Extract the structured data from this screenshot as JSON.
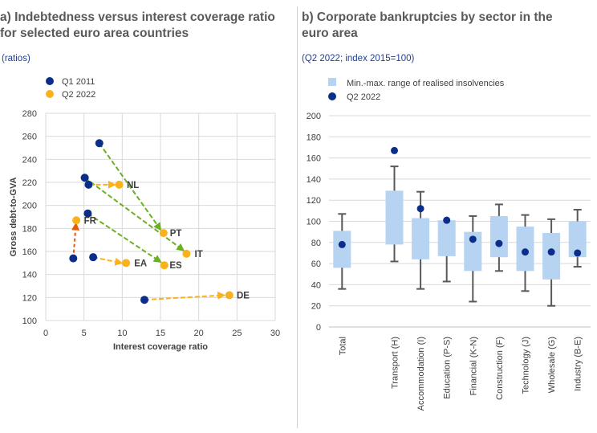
{
  "panel_a": {
    "title_line1": "a) Indebtedness versus interest coverage ratio",
    "title_line2": "for selected euro area countries",
    "subtitle": "(ratios)"
  },
  "panel_b": {
    "title_line1": "b) Corporate bankruptcies by sector in the",
    "title_line2": "euro area",
    "subtitle": "(Q2 2022; index 2015=100)"
  },
  "colors": {
    "q1_2011": "#0b2e8a",
    "q2_2022": "#f9b21b",
    "arrow_improve": "#6ab023",
    "arrow_worsen": "#f9b21b",
    "arrow_fr": "#e8590c",
    "range_bar": "#b7d3f2",
    "whisker": "#595959",
    "grid": "#d9d9d9"
  },
  "chart_data": [
    {
      "type": "scatter",
      "title": "",
      "xlabel": "Interest coverage ratio",
      "ylabel": "Gross debt-to-GVA",
      "xlim": [
        0,
        30
      ],
      "ylim": [
        100,
        280
      ],
      "xticks": [
        0,
        5,
        10,
        15,
        20,
        25,
        30
      ],
      "yticks": [
        100,
        120,
        140,
        160,
        180,
        200,
        220,
        240,
        260,
        280
      ],
      "grid": true,
      "legend": [
        "Q1 2011",
        "Q2 2022"
      ],
      "legend_position": "top-left",
      "series": [
        {
          "name": "Q1 2011",
          "color": "#0b2e8a",
          "points": [
            {
              "label": "NL",
              "x": 7.0,
              "y": 254
            },
            {
              "label": "PT",
              "x": 5.1,
              "y": 224
            },
            {
              "label": "IT",
              "x": 5.6,
              "y": 218
            },
            {
              "label": "ES",
              "x": 5.5,
              "y": 193
            },
            {
              "label": "FR",
              "x": 3.6,
              "y": 154
            },
            {
              "label": "EA",
              "x": 6.2,
              "y": 155
            },
            {
              "label": "DE",
              "x": 12.9,
              "y": 118
            }
          ]
        },
        {
          "name": "Q2 2022",
          "color": "#f9b21b",
          "points": [
            {
              "label": "NL",
              "x": 9.6,
              "y": 218
            },
            {
              "label": "PT",
              "x": 15.4,
              "y": 176
            },
            {
              "label": "IT",
              "x": 18.4,
              "y": 158
            },
            {
              "label": "ES",
              "x": 15.5,
              "y": 148
            },
            {
              "label": "FR",
              "x": 4.0,
              "y": 187
            },
            {
              "label": "EA",
              "x": 10.5,
              "y": 150
            },
            {
              "label": "DE",
              "x": 24.0,
              "y": 122
            }
          ]
        }
      ],
      "arrows": [
        {
          "from": [
            7.0,
            254
          ],
          "to": [
            15.0,
            179
          ],
          "style": "improve"
        },
        {
          "from": [
            5.1,
            224
          ],
          "to": [
            18.0,
            161
          ],
          "style": "improve"
        },
        {
          "from": [
            5.5,
            193
          ],
          "to": [
            15.0,
            151
          ],
          "style": "improve"
        },
        {
          "from": [
            5.6,
            218
          ],
          "to": [
            9.0,
            218
          ],
          "style": "worsen"
        },
        {
          "from": [
            6.2,
            155
          ],
          "to": [
            9.9,
            150
          ],
          "style": "worsen"
        },
        {
          "from": [
            12.9,
            118
          ],
          "to": [
            23.3,
            122
          ],
          "style": "worsen"
        },
        {
          "from": [
            3.6,
            154
          ],
          "to": [
            3.95,
            184
          ],
          "style": "fr"
        }
      ],
      "point_labels": [
        {
          "text": "NL",
          "x": 11.4,
          "y": 218
        },
        {
          "text": "FR",
          "x": 5.8,
          "y": 187
        },
        {
          "text": "PT",
          "x": 17.0,
          "y": 176
        },
        {
          "text": "IT",
          "x": 20.0,
          "y": 158
        },
        {
          "text": "ES",
          "x": 17.0,
          "y": 148
        },
        {
          "text": "EA",
          "x": 12.4,
          "y": 150
        },
        {
          "text": "DE",
          "x": 25.8,
          "y": 122
        }
      ]
    },
    {
      "type": "bar",
      "title": "",
      "xlabel": "",
      "ylabel": "",
      "ylim": [
        0,
        200
      ],
      "yticks": [
        0,
        20,
        40,
        60,
        80,
        100,
        120,
        140,
        160,
        180,
        200
      ],
      "grid": true,
      "legend": [
        "Min.-max. range of realised insolvencies",
        "Q2 2022"
      ],
      "legend_position": "top-left",
      "categories": [
        "Total",
        "",
        "Transport (H)",
        "Accommodation (I)",
        "Education (P-S)",
        "Financial (K-N)",
        "Construction (F)",
        "Technology (J)",
        "Wholesale (G)",
        "Industry (B-E)"
      ],
      "series": [
        {
          "name": "Min.-max. range of realised insolvencies",
          "box_low": [
            56,
            null,
            78,
            64,
            67,
            53,
            66,
            53,
            45,
            66
          ],
          "box_high": [
            91,
            null,
            129,
            103,
            101,
            90,
            105,
            95,
            89,
            100
          ],
          "whisker_low": [
            36,
            null,
            62,
            36,
            43,
            24,
            53,
            34,
            20,
            57
          ],
          "whisker_high": [
            107,
            null,
            152,
            128,
            100,
            105,
            116,
            106,
            102,
            111
          ]
        },
        {
          "name": "Q2 2022",
          "values": [
            78,
            null,
            167,
            112,
            101,
            83,
            79,
            71,
            71,
            70
          ]
        }
      ]
    }
  ]
}
